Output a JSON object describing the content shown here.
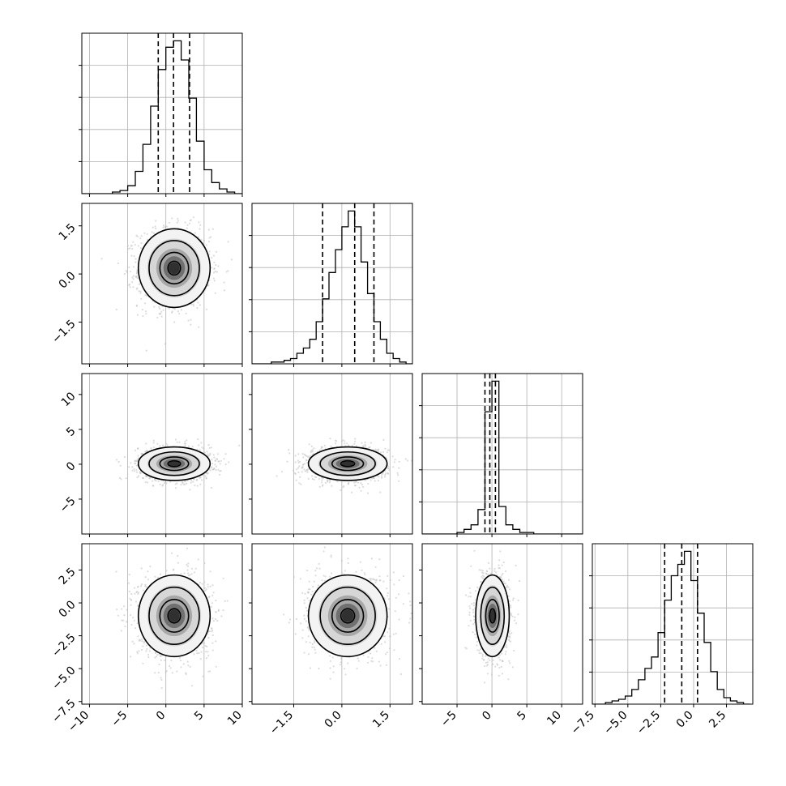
{
  "chart_data": {
    "type": "corner",
    "n_params": 4,
    "title": "",
    "parameter_labels": [
      "",
      "",
      "",
      ""
    ],
    "axis_ranges": [
      [
        -11,
        10
      ],
      [
        -2.8,
        2.2
      ],
      [
        -10,
        13
      ],
      [
        -7.7,
        4.5
      ]
    ],
    "ticks": [
      {
        "values": [
          -10,
          -5,
          0,
          5,
          10
        ],
        "labels": [
          "−10",
          "−5",
          "0",
          "5",
          "10"
        ]
      },
      {
        "values": [
          -1.5,
          0.0,
          1.5
        ],
        "labels": [
          "−1.5",
          "0.0",
          "1.5"
        ]
      },
      {
        "values": [
          -5,
          0,
          5,
          10
        ],
        "labels": [
          "−5",
          "0",
          "5",
          "10"
        ]
      },
      {
        "values": [
          -7.5,
          -5.0,
          -2.5,
          0.0,
          2.5
        ],
        "labels": [
          "−7.5",
          "−5.0",
          "−2.5",
          "0.0",
          "2.5"
        ]
      }
    ],
    "quantile_lines": [
      [
        -1.0,
        1.0,
        3.1
      ],
      [
        -0.6,
        0.4,
        1.0
      ],
      [
        -1.0,
        -0.3,
        0.5
      ],
      [
        -2.2,
        -0.9,
        0.3
      ]
    ],
    "histograms": [
      {
        "bin_edges": [
          -11,
          -10,
          -9,
          -8,
          -7,
          -6,
          -5,
          -4,
          -3,
          -2,
          -1,
          0,
          1,
          2,
          3,
          4,
          5,
          6,
          7,
          8,
          9,
          10
        ],
        "counts": [
          0,
          0,
          0,
          0,
          1,
          2,
          5,
          14,
          31,
          55,
          78,
          92,
          96,
          84,
          60,
          33,
          15,
          7,
          3,
          1,
          0
        ]
      },
      {
        "bin_edges": [
          -2.8,
          -2.6,
          -2.4,
          -2.2,
          -2.0,
          -1.8,
          -1.6,
          -1.4,
          -1.2,
          -1.0,
          -0.8,
          -0.6,
          -0.4,
          -0.2,
          0.0,
          0.2,
          0.4,
          0.6,
          0.8,
          1.0,
          1.2,
          1.4,
          1.6,
          1.8,
          2.0,
          2.2
        ],
        "counts": [
          0,
          0,
          0,
          1,
          1,
          2,
          3,
          6,
          9,
          14,
          24,
          37,
          52,
          65,
          78,
          87,
          78,
          58,
          40,
          24,
          14,
          6,
          3,
          1,
          0
        ]
      },
      {
        "bin_edges": [
          -10,
          -9,
          -8,
          -7,
          -6,
          -5,
          -4,
          -3,
          -2,
          -1,
          0,
          1,
          2,
          3,
          4,
          5,
          6,
          7,
          8,
          9,
          10,
          11,
          12,
          13
        ],
        "counts": [
          0,
          0,
          0,
          0,
          0,
          1,
          3,
          6,
          16,
          80,
          100,
          18,
          6,
          3,
          1,
          1,
          0,
          0,
          0,
          0,
          0,
          0,
          0
        ]
      },
      {
        "bin_edges": [
          -7.7,
          -7.2,
          -6.7,
          -6.2,
          -5.7,
          -5.2,
          -4.7,
          -4.2,
          -3.7,
          -3.2,
          -2.7,
          -2.2,
          -1.7,
          -1.2,
          -0.7,
          -0.2,
          0.3,
          0.8,
          1.3,
          1.8,
          2.3,
          2.8,
          3.3,
          3.8,
          4.3
        ],
        "counts": [
          0,
          0,
          1,
          2,
          3,
          5,
          9,
          15,
          22,
          29,
          44,
          64,
          79,
          86,
          94,
          76,
          56,
          38,
          20,
          9,
          4,
          2,
          1,
          0
        ]
      }
    ],
    "correlations": [
      [
        1.0,
        0.0,
        0.0,
        0.0
      ],
      [
        0.0,
        1.0,
        0.0,
        0.0
      ],
      [
        0.0,
        0.0,
        1.0,
        0.0
      ],
      [
        0.0,
        0.0,
        0.0,
        1.0
      ]
    ],
    "contour_levels": [
      "1-sigma",
      "2-sigma",
      "3-sigma"
    ],
    "grid": true,
    "colors": {
      "line": "#000000",
      "grid": "#b0b0b0",
      "points": "#bfbfbf",
      "density": "#000000"
    }
  }
}
